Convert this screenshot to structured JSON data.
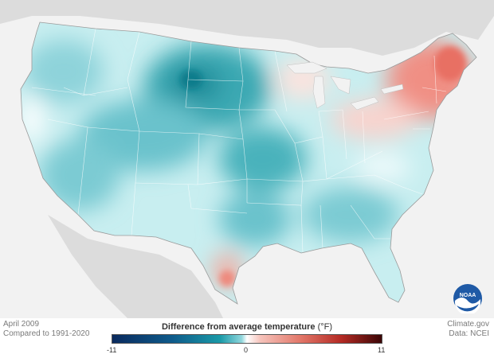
{
  "map": {
    "date": "April 2009",
    "comparison": "Compared to 1991-2020",
    "credit": "Climate.gov",
    "source": "Data: NCEI",
    "logo_text": "NOAA"
  },
  "legend": {
    "title": "Difference from average temperature",
    "unit": "(°F)",
    "min_label": "-11",
    "mid_label": "0",
    "max_label": "11",
    "colors": [
      "#0a2a5e",
      "#1a9aa8",
      "#ffffff",
      "#e27668",
      "#3b0606"
    ]
  }
}
